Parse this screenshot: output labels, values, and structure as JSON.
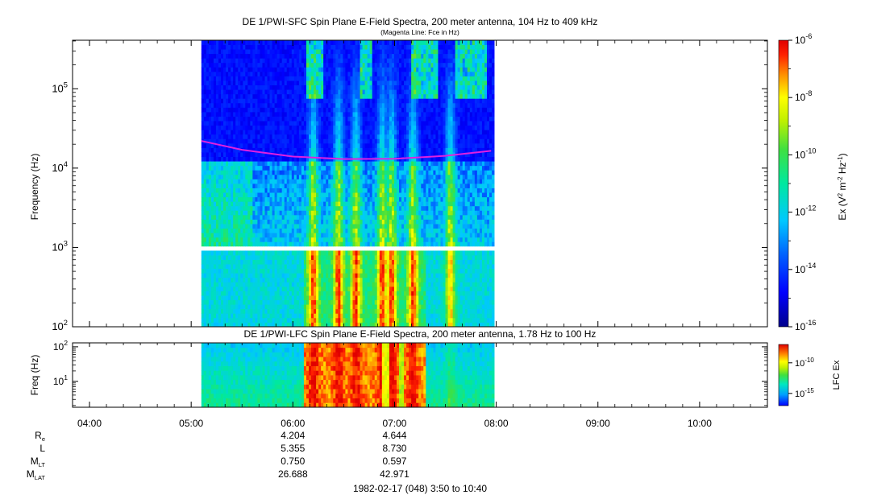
{
  "chart_data": [
    {
      "type": "heatmap",
      "name": "sfc",
      "title": "DE 1/PWI-SFC  Spin Plane E-Field Spectra, 200 meter antenna, 104 Hz to 409 kHz",
      "subtitle": "(Magenta Line: Fce in Hz)",
      "ylabel": "Frequency (Hz)",
      "yscale": "log",
      "ylim": [
        100,
        409000
      ],
      "y_ticks": [
        {
          "value": 100,
          "base": "10",
          "exp": "2"
        },
        {
          "value": 1000,
          "base": "10",
          "exp": "3"
        },
        {
          "value": 10000,
          "base": "10",
          "exp": "4"
        },
        {
          "value": 100000,
          "base": "10",
          "exp": "5"
        }
      ],
      "data_coverage_hours": [
        5.1,
        7.98
      ],
      "gap_band_hz": [
        900,
        1030
      ],
      "fce_line": {
        "color": "#e020e0",
        "x_hours": [
          5.1,
          5.5,
          6.0,
          6.5,
          7.0,
          7.5,
          7.95
        ],
        "y_hz": [
          22000,
          17000,
          14000,
          13000,
          13100,
          14300,
          16500
        ]
      },
      "colorbar": {
        "label_base": "Ex (V",
        "label_exp1": "2",
        "label_mid": " m",
        "label_exp2": "-2",
        "label_mid2": " Hz",
        "label_exp3": "-1",
        "label_end": ")",
        "range_log10": [
          -16,
          -6
        ],
        "ticks": [
          {
            "base": "10",
            "exp": "-6"
          },
          {
            "base": "10",
            "exp": "-8"
          },
          {
            "base": "10",
            "exp": "-10"
          },
          {
            "base": "10",
            "exp": "-12"
          },
          {
            "base": "10",
            "exp": "-14"
          },
          {
            "base": "10",
            "exp": "-16"
          }
        ]
      }
    },
    {
      "type": "heatmap",
      "name": "lfc",
      "title": "DE 1/PWI-LFC  Spin Plane E-Field Spectra, 200 meter antenna, 1.78 Hz to 100 Hz",
      "ylabel": "Freq (Hz)",
      "yscale": "log",
      "ylim": [
        1.78,
        130
      ],
      "y_ticks": [
        {
          "value": 10,
          "base": "10",
          "exp": "1"
        },
        {
          "value": 100,
          "base": "10",
          "exp": "2"
        }
      ],
      "data_coverage_hours": [
        5.1,
        7.98
      ],
      "colorbar": {
        "label": "LFC Ex",
        "range_log10": [
          -17,
          -7
        ],
        "ticks": [
          {
            "value_log10": -10,
            "base": "10",
            "exp": "-10"
          },
          {
            "value_log10": -15,
            "base": "10",
            "exp": "-15"
          }
        ]
      }
    }
  ],
  "time_axis": {
    "range_hours": [
      3.8333,
      10.6667
    ],
    "ticks": [
      {
        "hour": 4,
        "label": "04:00"
      },
      {
        "hour": 5,
        "label": "05:00"
      },
      {
        "hour": 6,
        "label": "06:00"
      },
      {
        "hour": 7,
        "label": "07:00"
      },
      {
        "hour": 8,
        "label": "08:00"
      },
      {
        "hour": 9,
        "label": "09:00"
      },
      {
        "hour": 10,
        "label": "10:00"
      }
    ]
  },
  "ephemeris": {
    "rows": [
      {
        "name": "R",
        "sub": "e",
        "values": [
          {
            "hour": 6,
            "text": "4.204"
          },
          {
            "hour": 7,
            "text": "4.644"
          }
        ]
      },
      {
        "name": "L",
        "sub": "",
        "values": [
          {
            "hour": 6,
            "text": "5.355"
          },
          {
            "hour": 7,
            "text": "8.730"
          }
        ]
      },
      {
        "name": "M",
        "sub": "LT",
        "values": [
          {
            "hour": 6,
            "text": "0.750"
          },
          {
            "hour": 7,
            "text": "0.597"
          }
        ]
      },
      {
        "name": "M",
        "sub": "LAT",
        "values": [
          {
            "hour": 6,
            "text": "26.688"
          },
          {
            "hour": 7,
            "text": "42.971"
          }
        ]
      }
    ]
  },
  "footer": "1982-02-17 (048) 3:50 to 10:40"
}
